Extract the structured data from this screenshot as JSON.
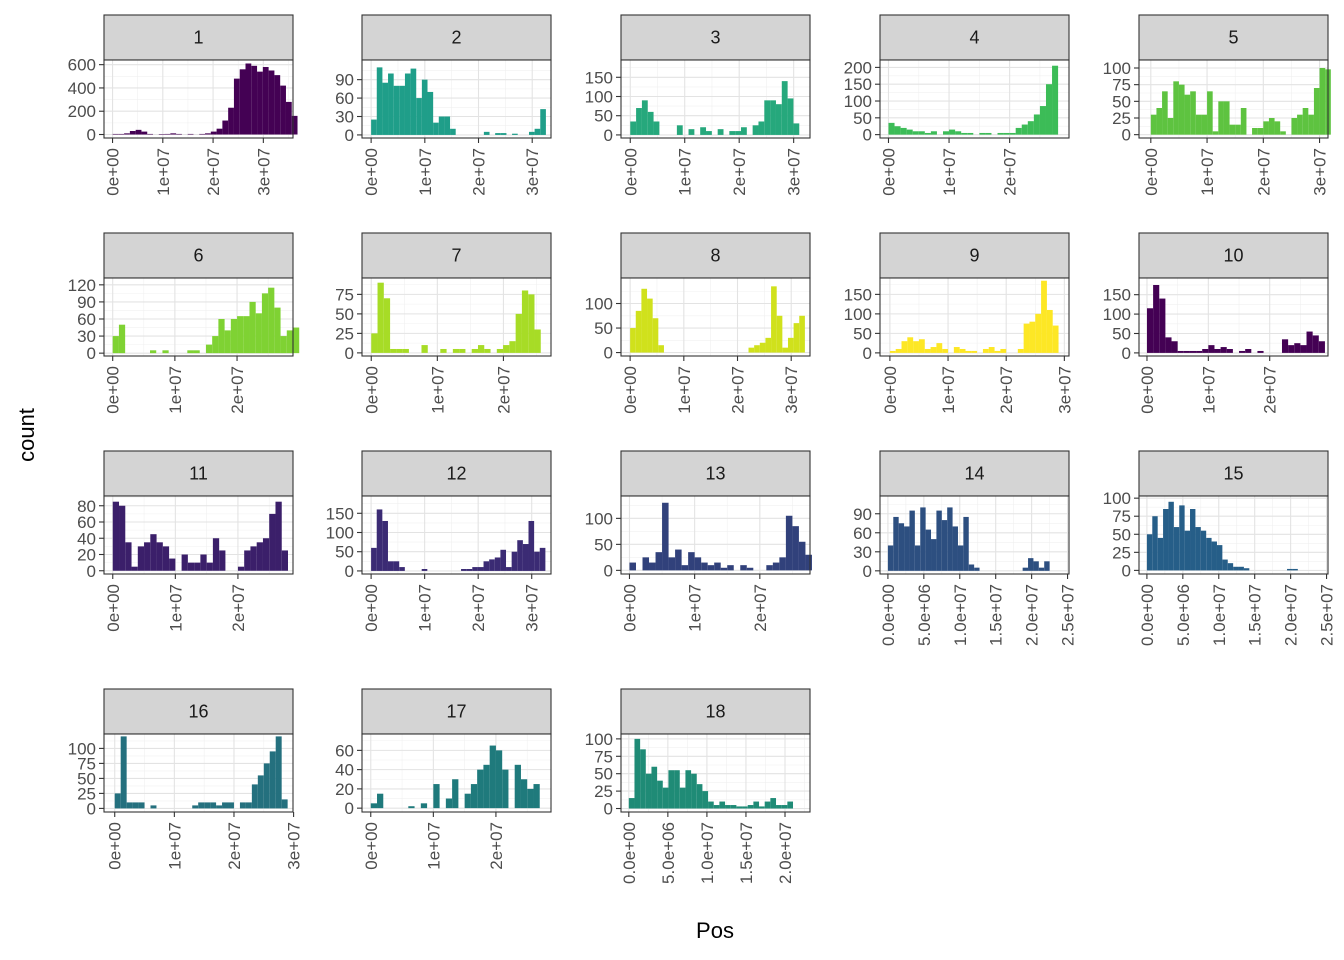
{
  "chart_data": {
    "type": "bar",
    "facet_variable_values_note_free": true,
    "xlabel": "Pos",
    "ylabel": "count",
    "grid": true,
    "legend": "none",
    "panels": [
      {
        "label": "1",
        "color": "#440154",
        "xticks": [
          0,
          10000000,
          20000000,
          30000000
        ],
        "xtick_labels": [
          "0e+00",
          "1e+07",
          "2e+07",
          "3e+07"
        ],
        "xlim": [
          -1700000,
          35900000
        ],
        "yticks": [
          0,
          200,
          400,
          600
        ],
        "ytick_labels": [
          "0",
          "200",
          "400",
          "600"
        ],
        "ylim": [
          -30,
          640
        ],
        "bin_start": 0,
        "bin_width": 1150000,
        "counts": [
          5,
          5,
          10,
          30,
          40,
          25,
          5,
          0,
          3,
          5,
          10,
          5,
          0,
          5,
          0,
          5,
          10,
          25,
          50,
          120,
          230,
          480,
          560,
          610,
          590,
          540,
          580,
          550,
          510,
          420,
          280,
          160
        ]
      },
      {
        "label": "2",
        "color": "#1f9e89",
        "xticks": [
          0,
          10000000,
          20000000,
          30000000
        ],
        "xtick_labels": [
          "0e+00",
          "1e+07",
          "2e+07",
          "3e+07"
        ],
        "xlim": [
          -1700000,
          33500000
        ],
        "yticks": [
          0,
          30,
          60,
          90
        ],
        "ytick_labels": [
          "0",
          "30",
          "60",
          "90"
        ],
        "ylim": [
          -5,
          122
        ],
        "bin_start": 0,
        "bin_width": 1050000,
        "counts": [
          25,
          110,
          85,
          100,
          80,
          80,
          100,
          108,
          60,
          90,
          70,
          20,
          30,
          30,
          10,
          0,
          0,
          0,
          0,
          0,
          5,
          0,
          3,
          3,
          0,
          2,
          0,
          0,
          5,
          10,
          42
        ]
      },
      {
        "label": "3",
        "color": "#26a87c",
        "xticks": [
          0,
          10000000,
          20000000,
          30000000
        ],
        "xtick_labels": [
          "0e+00",
          "1e+07",
          "2e+07",
          "3e+07"
        ],
        "xlim": [
          -1700000,
          33000000
        ],
        "yticks": [
          0,
          50,
          100,
          150
        ],
        "ytick_labels": [
          "0",
          "50",
          "100",
          "150"
        ],
        "ylim": [
          -8,
          195
        ],
        "bin_start": 0,
        "bin_width": 1070000,
        "counts": [
          35,
          70,
          90,
          60,
          35,
          0,
          0,
          0,
          25,
          0,
          15,
          0,
          20,
          10,
          0,
          15,
          0,
          10,
          10,
          20,
          0,
          25,
          35,
          90,
          90,
          80,
          140,
          95,
          30
        ]
      },
      {
        "label": "4",
        "color": "#3cbc57",
        "xticks": [
          0,
          10000000,
          20000000
        ],
        "xtick_labels": [
          "0e+00",
          "1e+07",
          "2e+07"
        ],
        "xlim": [
          -1400000,
          29800000
        ],
        "yticks": [
          0,
          50,
          100,
          150,
          200
        ],
        "ytick_labels": [
          "0",
          "50",
          "100",
          "150",
          "200"
        ],
        "ylim": [
          -10,
          222
        ],
        "bin_start": 0,
        "bin_width": 1000000,
        "counts": [
          35,
          25,
          20,
          15,
          10,
          10,
          5,
          10,
          0,
          10,
          15,
          10,
          5,
          5,
          0,
          5,
          5,
          0,
          5,
          5,
          5,
          20,
          30,
          40,
          60,
          85,
          150,
          205
        ]
      },
      {
        "label": "5",
        "color": "#5ec340",
        "xticks": [
          0,
          10000000,
          20000000,
          30000000
        ],
        "xtick_labels": [
          "0e+00",
          "1e+07",
          "2e+07",
          "3e+07"
        ],
        "xlim": [
          -2100000,
          31500000
        ],
        "yticks": [
          0,
          25,
          50,
          75,
          100
        ],
        "ytick_labels": [
          "0",
          "25",
          "50",
          "75",
          "100"
        ],
        "ylim": [
          -5,
          112
        ],
        "bin_start": 0,
        "bin_width": 1000000,
        "counts": [
          30,
          40,
          65,
          25,
          80,
          75,
          60,
          65,
          30,
          30,
          65,
          5,
          50,
          50,
          15,
          15,
          40,
          0,
          10,
          10,
          20,
          25,
          20,
          5,
          0,
          25,
          30,
          40,
          30,
          70,
          100,
          98
        ]
      },
      {
        "label": "6",
        "color": "#7fd233",
        "xticks": [
          0,
          10000000,
          20000000
        ],
        "xtick_labels": [
          "0e+00",
          "1e+07",
          "2e+07"
        ],
        "xlim": [
          -1400000,
          29000000
        ],
        "yticks": [
          0,
          30,
          60,
          90,
          120
        ],
        "ytick_labels": [
          "0",
          "30",
          "60",
          "90",
          "120"
        ],
        "ylim": [
          -5,
          132
        ],
        "bin_start": 0,
        "bin_width": 1000000,
        "counts": [
          30,
          50,
          0,
          0,
          0,
          0,
          5,
          0,
          5,
          0,
          0,
          0,
          5,
          5,
          0,
          15,
          30,
          60,
          40,
          60,
          65,
          65,
          90,
          70,
          105,
          115,
          80,
          30,
          40,
          45
        ]
      },
      {
        "label": "7",
        "color": "#a7dc26",
        "xticks": [
          0,
          10000000,
          20000000
        ],
        "xtick_labels": [
          "0e+00",
          "1e+07",
          "2e+07"
        ],
        "xlim": [
          -1400000,
          27200000
        ],
        "yticks": [
          0,
          25,
          50,
          75
        ],
        "ytick_labels": [
          "0",
          "25",
          "50",
          "75"
        ],
        "ylim": [
          -4,
          96
        ],
        "bin_start": 0,
        "bin_width": 950000,
        "counts": [
          25,
          90,
          70,
          5,
          5,
          5,
          0,
          0,
          10,
          0,
          0,
          5,
          0,
          5,
          5,
          0,
          5,
          10,
          5,
          0,
          5,
          10,
          15,
          50,
          80,
          75,
          30
        ]
      },
      {
        "label": "8",
        "color": "#d0e11c",
        "xticks": [
          0,
          10000000,
          20000000,
          30000000
        ],
        "xtick_labels": [
          "0e+00",
          "1e+07",
          "2e+07",
          "3e+07"
        ],
        "xlim": [
          -1700000,
          33500000
        ],
        "yticks": [
          0,
          50,
          100
        ],
        "ytick_labels": [
          "0",
          "50",
          "100"
        ],
        "ylim": [
          -7,
          152
        ],
        "bin_start": 0,
        "bin_width": 1050000,
        "counts": [
          50,
          85,
          130,
          110,
          70,
          15,
          0,
          0,
          0,
          0,
          0,
          0,
          0,
          0,
          0,
          0,
          0,
          0,
          0,
          0,
          0,
          10,
          15,
          20,
          30,
          135,
          75,
          10,
          30,
          60,
          75
        ]
      },
      {
        "label": "9",
        "color": "#fde725",
        "xticks": [
          0,
          10000000,
          20000000,
          30000000
        ],
        "xtick_labels": [
          "0e+00",
          "1e+07",
          "2e+07",
          "3e+07"
        ],
        "xlim": [
          -1700000,
          30800000
        ],
        "yticks": [
          0,
          50,
          100,
          150
        ],
        "ytick_labels": [
          "0",
          "50",
          "100",
          "150"
        ],
        "ylim": [
          -8,
          192
        ],
        "bin_start": 0,
        "bin_width": 1000000,
        "counts": [
          5,
          10,
          30,
          40,
          30,
          35,
          10,
          15,
          25,
          10,
          0,
          15,
          10,
          5,
          5,
          0,
          10,
          15,
          5,
          10,
          0,
          0,
          10,
          75,
          80,
          100,
          185,
          110,
          70
        ]
      },
      {
        "label": "10",
        "color": "#440154",
        "xticks": [
          0,
          10000000,
          20000000
        ],
        "xtick_labels": [
          "0e+00",
          "1e+07",
          "2e+07"
        ],
        "xlim": [
          -1300000,
          29500000
        ],
        "yticks": [
          0,
          50,
          100,
          150
        ],
        "ytick_labels": [
          "0",
          "50",
          "100",
          "150"
        ],
        "ylim": [
          -8,
          193
        ],
        "bin_start": 0,
        "bin_width": 1000000,
        "counts": [
          115,
          175,
          140,
          40,
          30,
          5,
          5,
          5,
          5,
          10,
          20,
          10,
          15,
          10,
          0,
          5,
          10,
          0,
          5,
          0,
          0,
          0,
          35,
          20,
          25,
          20,
          55,
          45,
          30
        ]
      },
      {
        "label": "11",
        "color": "#3b1f6a",
        "xticks": [
          0,
          10000000,
          20000000
        ],
        "xtick_labels": [
          "0e+00",
          "1e+07",
          "2e+07"
        ],
        "xlim": [
          -1400000,
          28800000
        ],
        "yticks": [
          0,
          20,
          40,
          60,
          80
        ],
        "ytick_labels": [
          "0",
          "20",
          "40",
          "60",
          "80"
        ],
        "ylim": [
          -4,
          92
        ],
        "bin_start": 0,
        "bin_width": 1000000,
        "counts": [
          85,
          80,
          35,
          5,
          30,
          35,
          45,
          35,
          30,
          15,
          0,
          20,
          10,
          10,
          20,
          10,
          40,
          25,
          0,
          0,
          5,
          25,
          30,
          35,
          40,
          70,
          85,
          25
        ]
      },
      {
        "label": "12",
        "color": "#3b2b74",
        "xticks": [
          0,
          10000000,
          20000000,
          30000000
        ],
        "xtick_labels": [
          "0e+00",
          "1e+07",
          "2e+07",
          "3e+07"
        ],
        "xlim": [
          -1700000,
          33600000
        ],
        "yticks": [
          0,
          50,
          100,
          150
        ],
        "ytick_labels": [
          "0",
          "50",
          "100",
          "150"
        ],
        "ylim": [
          -8,
          195
        ],
        "bin_start": 0,
        "bin_width": 1050000,
        "counts": [
          60,
          160,
          130,
          25,
          25,
          10,
          0,
          0,
          0,
          5,
          0,
          0,
          0,
          0,
          0,
          0,
          5,
          5,
          10,
          10,
          25,
          30,
          35,
          55,
          10,
          50,
          80,
          70,
          130,
          50,
          60
        ]
      },
      {
        "label": "13",
        "color": "#31417b",
        "xticks": [
          0,
          10000000,
          20000000
        ],
        "xtick_labels": [
          "0e+00",
          "1e+07",
          "2e+07"
        ],
        "xlim": [
          -1300000,
          27700000
        ],
        "yticks": [
          0,
          50,
          100
        ],
        "ytick_labels": [
          "0",
          "50",
          "100"
        ],
        "ylim": [
          -7,
          143
        ],
        "bin_start": 0,
        "bin_width": 1000000,
        "counts": [
          15,
          0,
          25,
          15,
          35,
          130,
          25,
          40,
          10,
          35,
          25,
          15,
          10,
          15,
          5,
          10,
          0,
          10,
          5,
          0,
          0,
          10,
          15,
          25,
          105,
          85,
          55,
          30
        ]
      },
      {
        "label": "14",
        "color": "#2d4f80",
        "xticks": [
          0,
          5000000,
          10000000,
          15000000,
          20000000,
          25000000
        ],
        "xtick_labels": [
          "0.0e+00",
          "5.0e+06",
          "1.0e+07",
          "1.5e+07",
          "2.0e+07",
          "2.5e+07"
        ],
        "xlim": [
          -1100000,
          25200000
        ],
        "yticks": [
          0,
          30,
          60,
          90
        ],
        "ytick_labels": [
          "0",
          "30",
          "60",
          "90"
        ],
        "ylim": [
          -5,
          118
        ],
        "bin_start": 0,
        "bin_width": 750000,
        "counts": [
          40,
          85,
          75,
          70,
          95,
          40,
          100,
          65,
          50,
          95,
          80,
          100,
          70,
          40,
          85,
          10,
          5,
          0,
          0,
          0,
          0,
          0,
          0,
          0,
          0,
          5,
          20,
          15,
          5,
          15
        ]
      },
      {
        "label": "15",
        "color": "#265e88",
        "xticks": [
          0,
          5000000,
          10000000,
          15000000,
          20000000,
          25000000
        ],
        "xtick_labels": [
          "0.0e+00",
          "5.0e+06",
          "1.0e+07",
          "1.5e+07",
          "2.0e+07",
          "2.5e+07"
        ],
        "xlim": [
          -1100000,
          25200000
        ],
        "yticks": [
          0,
          25,
          50,
          75,
          100
        ],
        "ytick_labels": [
          "0",
          "25",
          "50",
          "75",
          "100"
        ],
        "ylim": [
          -5,
          103
        ],
        "bin_start": 0,
        "bin_width": 750000,
        "counts": [
          50,
          75,
          45,
          85,
          95,
          60,
          90,
          55,
          85,
          60,
          55,
          45,
          40,
          35,
          15,
          10,
          5,
          5,
          3,
          0,
          0,
          0,
          0,
          0,
          0,
          0,
          2,
          2
        ]
      },
      {
        "label": "16",
        "color": "#24707e",
        "xticks": [
          0,
          10000000,
          20000000,
          30000000
        ],
        "xtick_labels": [
          "0e+00",
          "1e+07",
          "2e+07",
          "3e+07"
        ],
        "xlim": [
          -1800000,
          29900000
        ],
        "yticks": [
          0,
          25,
          50,
          75,
          100
        ],
        "ytick_labels": [
          "0",
          "25",
          "50",
          "75",
          "100"
        ],
        "ylim": [
          -6,
          124
        ],
        "bin_start": 0,
        "bin_width": 1000000,
        "counts": [
          25,
          120,
          10,
          10,
          10,
          0,
          5,
          0,
          0,
          0,
          0,
          0,
          0,
          5,
          10,
          10,
          10,
          5,
          10,
          10,
          0,
          10,
          10,
          40,
          55,
          75,
          95,
          120,
          15
        ]
      },
      {
        "label": "17",
        "color": "#1f7a7c",
        "xticks": [
          0,
          10000000,
          20000000
        ],
        "xtick_labels": [
          "0e+00",
          "1e+07",
          "2e+07"
        ],
        "xlim": [
          -1400000,
          28800000
        ],
        "yticks": [
          0,
          20,
          40,
          60
        ],
        "ytick_labels": [
          "0",
          "20",
          "40",
          "60"
        ],
        "ylim": [
          -4,
          77
        ],
        "bin_start": 0,
        "bin_width": 1000000,
        "counts": [
          5,
          15,
          0,
          0,
          0,
          0,
          2,
          0,
          5,
          0,
          25,
          0,
          10,
          30,
          0,
          15,
          25,
          40,
          45,
          65,
          60,
          40,
          0,
          45,
          30,
          20,
          25
        ]
      },
      {
        "label": "18",
        "color": "#1f8b76",
        "xticks": [
          0,
          5000000,
          10000000,
          15000000,
          20000000
        ],
        "xtick_labels": [
          "0.0e+00",
          "5.0e+06",
          "1.0e+07",
          "1.5e+07",
          "2.0e+07"
        ],
        "xlim": [
          -1000000,
          23200000
        ],
        "yticks": [
          0,
          25,
          50,
          75,
          100
        ],
        "ytick_labels": [
          "0",
          "25",
          "50",
          "75",
          "100"
        ],
        "ylim": [
          -5,
          107
        ],
        "bin_start": 0,
        "bin_width": 725000,
        "counts": [
          15,
          100,
          85,
          50,
          60,
          40,
          30,
          55,
          55,
          30,
          55,
          50,
          35,
          25,
          10,
          5,
          10,
          5,
          5,
          3,
          3,
          5,
          10,
          3,
          10,
          15,
          5,
          5,
          10
        ]
      }
    ]
  }
}
